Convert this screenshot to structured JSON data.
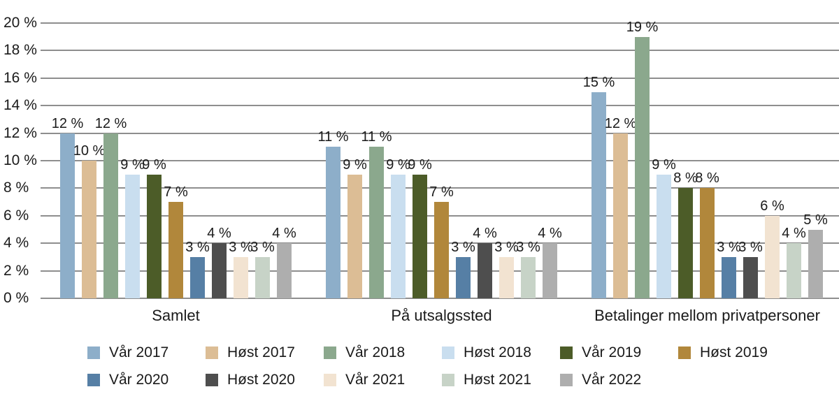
{
  "chart_data": {
    "type": "bar",
    "categories": [
      "Samlet",
      "På utsalgssted",
      "Betalinger mellom privatpersoner"
    ],
    "series": [
      {
        "name": "Vår 2017",
        "color": "#8DAEC9",
        "values": [
          12,
          11,
          15
        ]
      },
      {
        "name": "Høst 2017",
        "color": "#DCBD95",
        "values": [
          10,
          9,
          12
        ]
      },
      {
        "name": "Vår 2018",
        "color": "#8BA88D",
        "values": [
          12,
          11,
          19
        ]
      },
      {
        "name": "Høst 2018",
        "color": "#C9DEEF",
        "values": [
          9,
          9,
          9
        ]
      },
      {
        "name": "Vår 2019",
        "color": "#4C5C28",
        "values": [
          9,
          9,
          8
        ]
      },
      {
        "name": "Høst 2019",
        "color": "#B1873B",
        "values": [
          7,
          7,
          8
        ]
      },
      {
        "name": "Vår 2020",
        "color": "#567FA5",
        "values": [
          3,
          3,
          3
        ]
      },
      {
        "name": "Høst 2020",
        "color": "#4E4E4E",
        "values": [
          4,
          4,
          3
        ]
      },
      {
        "name": "Vår 2021",
        "color": "#F2E3D1",
        "values": [
          3,
          3,
          6
        ]
      },
      {
        "name": "Høst 2021",
        "color": "#C7D3C7",
        "values": [
          3,
          3,
          4
        ]
      },
      {
        "name": "Vår 2022",
        "color": "#AEAEAE",
        "values": [
          4,
          4,
          5
        ]
      }
    ],
    "y_axis": {
      "min": 0,
      "max": 20,
      "step": 2,
      "tick_labels": [
        "0 %",
        "2 %",
        "4 %",
        "6 %",
        "8 %",
        "10 %",
        "12 %",
        "14 %",
        "16 %",
        "18 %",
        "20 %"
      ]
    },
    "value_suffix": " %",
    "grid": true,
    "legend_position": "bottom",
    "colors": {
      "gridline": "#8e8e8e",
      "text": "#1a1a1a",
      "background": "#ffffff"
    }
  }
}
